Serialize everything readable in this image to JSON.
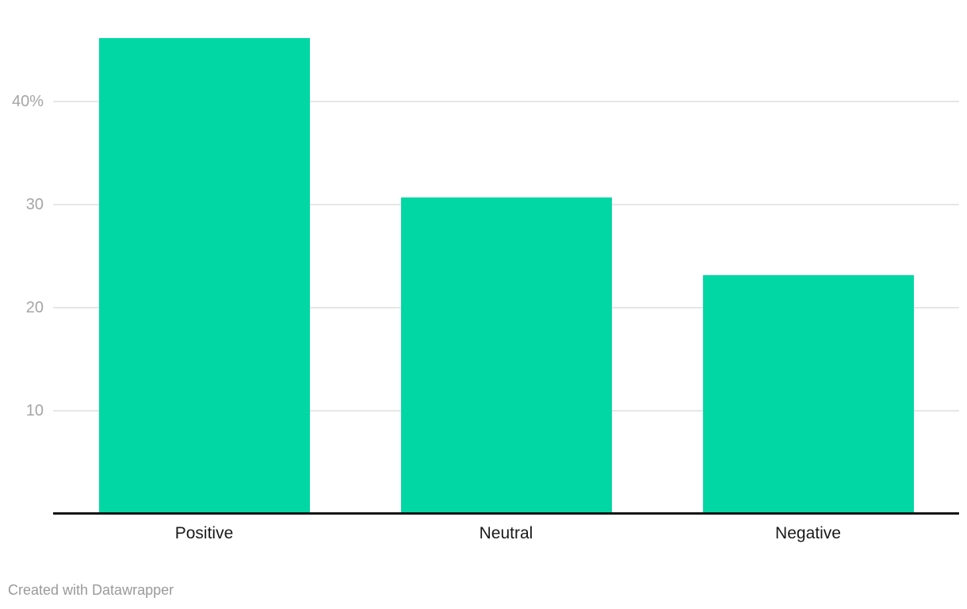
{
  "chart_data": {
    "type": "bar",
    "title": "",
    "xlabel": "",
    "ylabel": "",
    "categories": [
      "Positive",
      "Neutral",
      "Negative"
    ],
    "values": [
      46.1,
      30.7,
      23.1
    ],
    "value_unit": "%",
    "ylim": [
      0,
      49.8
    ],
    "yticks": [
      {
        "value": 10,
        "label": "10"
      },
      {
        "value": 20,
        "label": "20"
      },
      {
        "value": 30,
        "label": "30"
      },
      {
        "value": 40,
        "label": "40%"
      }
    ],
    "grid": true,
    "legend": "none",
    "bar_color": "#00d7a4",
    "gridline_color": "#e6e6e6",
    "axis_line_color": "#161616",
    "tick_label_color": "#a5a5a5",
    "category_label_color": "#1a1a1a"
  },
  "footer": {
    "credit": "Created with Datawrapper"
  }
}
